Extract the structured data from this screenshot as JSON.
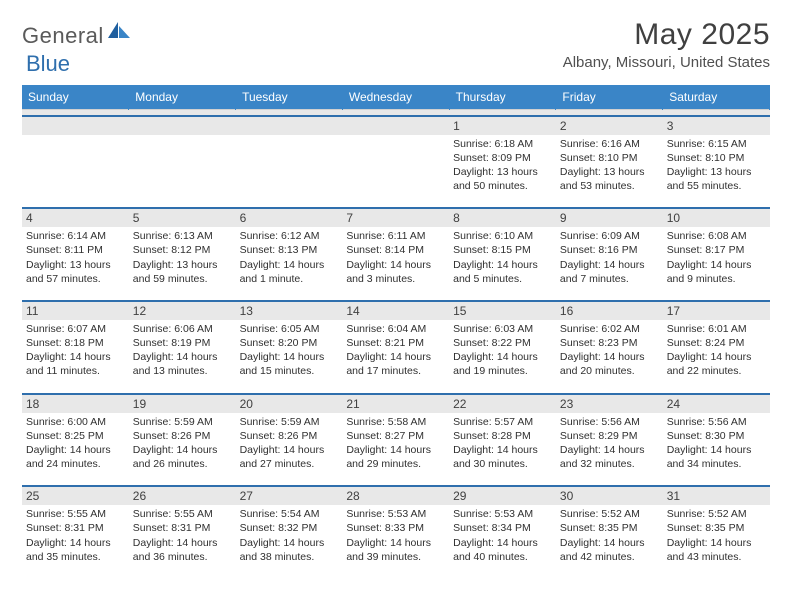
{
  "brand": {
    "text1": "General",
    "text2": "Blue"
  },
  "title": "May 2025",
  "location": "Albany, Missouri, United States",
  "colors": {
    "header_bg": "#3a85c7",
    "header_text": "#ffffff",
    "sep_line": "#2f6fad",
    "daynum_bg": "#e8e8e8",
    "body_text": "#303030",
    "title_text": "#404040",
    "logo_gray": "#5a5a5a",
    "logo_blue": "#2f6fad"
  },
  "typography": {
    "title_fontsize": 30,
    "location_fontsize": 15,
    "dayhead_fontsize": 12,
    "daynum_fontsize": 12,
    "body_fontsize": 10.5
  },
  "day_headers": [
    "Sunday",
    "Monday",
    "Tuesday",
    "Wednesday",
    "Thursday",
    "Friday",
    "Saturday"
  ],
  "weeks": [
    [
      {
        "n": "",
        "lines": []
      },
      {
        "n": "",
        "lines": []
      },
      {
        "n": "",
        "lines": []
      },
      {
        "n": "",
        "lines": []
      },
      {
        "n": "1",
        "lines": [
          "Sunrise: 6:18 AM",
          "Sunset: 8:09 PM",
          "Daylight: 13 hours and 50 minutes."
        ]
      },
      {
        "n": "2",
        "lines": [
          "Sunrise: 6:16 AM",
          "Sunset: 8:10 PM",
          "Daylight: 13 hours and 53 minutes."
        ]
      },
      {
        "n": "3",
        "lines": [
          "Sunrise: 6:15 AM",
          "Sunset: 8:10 PM",
          "Daylight: 13 hours and 55 minutes."
        ]
      }
    ],
    [
      {
        "n": "4",
        "lines": [
          "Sunrise: 6:14 AM",
          "Sunset: 8:11 PM",
          "Daylight: 13 hours and 57 minutes."
        ]
      },
      {
        "n": "5",
        "lines": [
          "Sunrise: 6:13 AM",
          "Sunset: 8:12 PM",
          "Daylight: 13 hours and 59 minutes."
        ]
      },
      {
        "n": "6",
        "lines": [
          "Sunrise: 6:12 AM",
          "Sunset: 8:13 PM",
          "Daylight: 14 hours and 1 minute."
        ]
      },
      {
        "n": "7",
        "lines": [
          "Sunrise: 6:11 AM",
          "Sunset: 8:14 PM",
          "Daylight: 14 hours and 3 minutes."
        ]
      },
      {
        "n": "8",
        "lines": [
          "Sunrise: 6:10 AM",
          "Sunset: 8:15 PM",
          "Daylight: 14 hours and 5 minutes."
        ]
      },
      {
        "n": "9",
        "lines": [
          "Sunrise: 6:09 AM",
          "Sunset: 8:16 PM",
          "Daylight: 14 hours and 7 minutes."
        ]
      },
      {
        "n": "10",
        "lines": [
          "Sunrise: 6:08 AM",
          "Sunset: 8:17 PM",
          "Daylight: 14 hours and 9 minutes."
        ]
      }
    ],
    [
      {
        "n": "11",
        "lines": [
          "Sunrise: 6:07 AM",
          "Sunset: 8:18 PM",
          "Daylight: 14 hours and 11 minutes."
        ]
      },
      {
        "n": "12",
        "lines": [
          "Sunrise: 6:06 AM",
          "Sunset: 8:19 PM",
          "Daylight: 14 hours and 13 minutes."
        ]
      },
      {
        "n": "13",
        "lines": [
          "Sunrise: 6:05 AM",
          "Sunset: 8:20 PM",
          "Daylight: 14 hours and 15 minutes."
        ]
      },
      {
        "n": "14",
        "lines": [
          "Sunrise: 6:04 AM",
          "Sunset: 8:21 PM",
          "Daylight: 14 hours and 17 minutes."
        ]
      },
      {
        "n": "15",
        "lines": [
          "Sunrise: 6:03 AM",
          "Sunset: 8:22 PM",
          "Daylight: 14 hours and 19 minutes."
        ]
      },
      {
        "n": "16",
        "lines": [
          "Sunrise: 6:02 AM",
          "Sunset: 8:23 PM",
          "Daylight: 14 hours and 20 minutes."
        ]
      },
      {
        "n": "17",
        "lines": [
          "Sunrise: 6:01 AM",
          "Sunset: 8:24 PM",
          "Daylight: 14 hours and 22 minutes."
        ]
      }
    ],
    [
      {
        "n": "18",
        "lines": [
          "Sunrise: 6:00 AM",
          "Sunset: 8:25 PM",
          "Daylight: 14 hours and 24 minutes."
        ]
      },
      {
        "n": "19",
        "lines": [
          "Sunrise: 5:59 AM",
          "Sunset: 8:26 PM",
          "Daylight: 14 hours and 26 minutes."
        ]
      },
      {
        "n": "20",
        "lines": [
          "Sunrise: 5:59 AM",
          "Sunset: 8:26 PM",
          "Daylight: 14 hours and 27 minutes."
        ]
      },
      {
        "n": "21",
        "lines": [
          "Sunrise: 5:58 AM",
          "Sunset: 8:27 PM",
          "Daylight: 14 hours and 29 minutes."
        ]
      },
      {
        "n": "22",
        "lines": [
          "Sunrise: 5:57 AM",
          "Sunset: 8:28 PM",
          "Daylight: 14 hours and 30 minutes."
        ]
      },
      {
        "n": "23",
        "lines": [
          "Sunrise: 5:56 AM",
          "Sunset: 8:29 PM",
          "Daylight: 14 hours and 32 minutes."
        ]
      },
      {
        "n": "24",
        "lines": [
          "Sunrise: 5:56 AM",
          "Sunset: 8:30 PM",
          "Daylight: 14 hours and 34 minutes."
        ]
      }
    ],
    [
      {
        "n": "25",
        "lines": [
          "Sunrise: 5:55 AM",
          "Sunset: 8:31 PM",
          "Daylight: 14 hours and 35 minutes."
        ]
      },
      {
        "n": "26",
        "lines": [
          "Sunrise: 5:55 AM",
          "Sunset: 8:31 PM",
          "Daylight: 14 hours and 36 minutes."
        ]
      },
      {
        "n": "27",
        "lines": [
          "Sunrise: 5:54 AM",
          "Sunset: 8:32 PM",
          "Daylight: 14 hours and 38 minutes."
        ]
      },
      {
        "n": "28",
        "lines": [
          "Sunrise: 5:53 AM",
          "Sunset: 8:33 PM",
          "Daylight: 14 hours and 39 minutes."
        ]
      },
      {
        "n": "29",
        "lines": [
          "Sunrise: 5:53 AM",
          "Sunset: 8:34 PM",
          "Daylight: 14 hours and 40 minutes."
        ]
      },
      {
        "n": "30",
        "lines": [
          "Sunrise: 5:52 AM",
          "Sunset: 8:35 PM",
          "Daylight: 14 hours and 42 minutes."
        ]
      },
      {
        "n": "31",
        "lines": [
          "Sunrise: 5:52 AM",
          "Sunset: 8:35 PM",
          "Daylight: 14 hours and 43 minutes."
        ]
      }
    ]
  ]
}
